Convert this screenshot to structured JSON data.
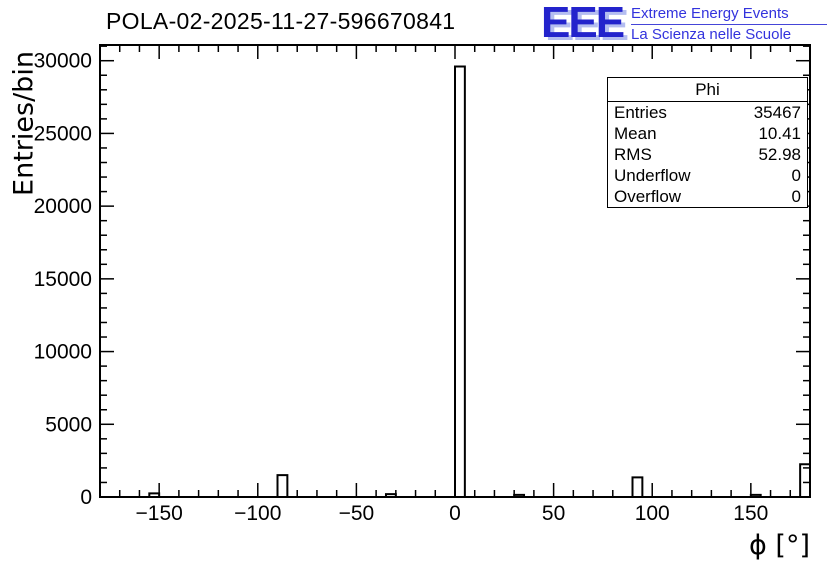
{
  "header": {
    "title": "POLA-02-2025-11-27-596670841",
    "logo": {
      "text": "EEE",
      "tagline1": "Extreme Energy Events",
      "tagline2": "La Scienza nelle Scuole",
      "color": "#2323cc",
      "shadow_color": "#b4bdf0"
    }
  },
  "stats_box": {
    "title": "Phi",
    "rows": [
      {
        "label": "Entries",
        "value": "35467"
      },
      {
        "label": "Mean",
        "value": "10.41"
      },
      {
        "label": "RMS",
        "value": "52.98"
      },
      {
        "label": "Underflow",
        "value": "0"
      },
      {
        "label": "Overflow",
        "value": "0"
      }
    ]
  },
  "chart_data": {
    "type": "bar",
    "title": "POLA-02-2025-11-27-596670841",
    "xlabel": "ϕ [°]",
    "ylabel": "Entries/bin",
    "xlim": [
      -180,
      180
    ],
    "ylim": [
      0,
      31080
    ],
    "x_major_ticks": [
      -150,
      -100,
      -50,
      0,
      50,
      100,
      150
    ],
    "x_minor_step": 10,
    "y_major_ticks": [
      0,
      5000,
      10000,
      15000,
      20000,
      25000,
      30000
    ],
    "y_minor_step": 1000,
    "grid": false,
    "bin_width": 5,
    "line_color": "#000000",
    "bins": [
      {
        "x_low": -155,
        "x_high": -150,
        "count": 250
      },
      {
        "x_low": -90,
        "x_high": -85,
        "count": 1500
      },
      {
        "x_low": -35,
        "x_high": -30,
        "count": 200
      },
      {
        "x_low": 0,
        "x_high": 5,
        "count": 29600
      },
      {
        "x_low": 30,
        "x_high": 35,
        "count": 150
      },
      {
        "x_low": 90,
        "x_high": 95,
        "count": 1350
      },
      {
        "x_low": 150,
        "x_high": 155,
        "count": 150
      },
      {
        "x_low": 175,
        "x_high": 180,
        "count": 2250
      }
    ]
  }
}
